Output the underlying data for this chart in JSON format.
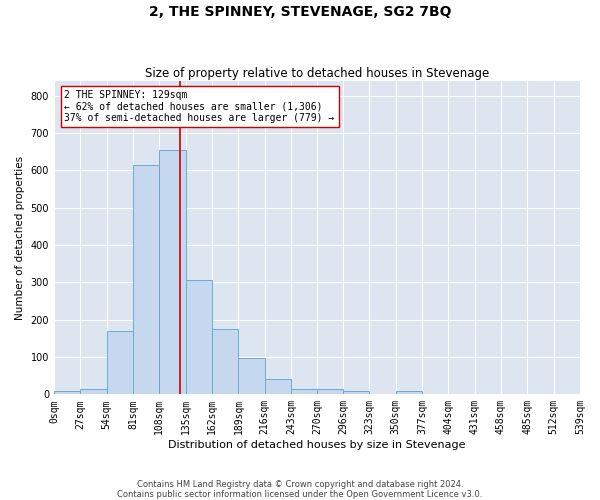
{
  "title": "2, THE SPINNEY, STEVENAGE, SG2 7BQ",
  "subtitle": "Size of property relative to detached houses in Stevenage",
  "xlabel": "Distribution of detached houses by size in Stevenage",
  "ylabel": "Number of detached properties",
  "bar_color": "#c5d8ef",
  "bar_edge_color": "#6aabd2",
  "background_color": "#dde6f0",
  "grid_color": "#ffffff",
  "property_line_value": 129,
  "property_line_color": "#cc0000",
  "annotation_text": "2 THE SPINNEY: 129sqm\n← 62% of detached houses are smaller (1,306)\n37% of semi-detached houses are larger (779) →",
  "annotation_box_color": "#ffffff",
  "annotation_box_edge": "#cc0000",
  "footer_text": "Contains HM Land Registry data © Crown copyright and database right 2024.\nContains public sector information licensed under the Open Government Licence v3.0.",
  "bin_edges": [
    0,
    27,
    54,
    81,
    108,
    135,
    162,
    189,
    216,
    243,
    270,
    296,
    323,
    350,
    377,
    404,
    431,
    458,
    485,
    512,
    539
  ],
  "bar_heights": [
    8,
    13,
    170,
    615,
    655,
    305,
    175,
    97,
    40,
    15,
    13,
    10,
    0,
    8,
    0,
    0,
    0,
    0,
    0,
    0
  ],
  "ylim": [
    0,
    840
  ],
  "yticks": [
    0,
    100,
    200,
    300,
    400,
    500,
    600,
    700,
    800
  ],
  "title_fontsize": 10,
  "subtitle_fontsize": 8.5,
  "xlabel_fontsize": 8,
  "ylabel_fontsize": 7.5,
  "tick_fontsize": 7,
  "footer_fontsize": 6
}
